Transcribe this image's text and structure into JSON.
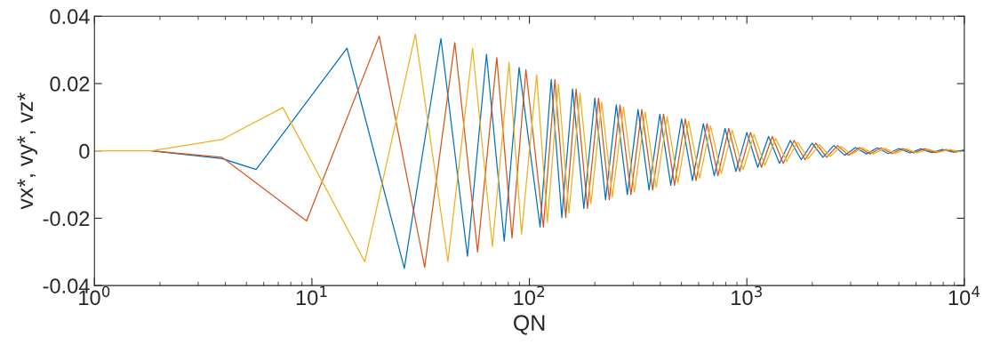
{
  "chart_data": {
    "type": "line",
    "xlabel": "QN",
    "ylabel": "vx*, vy*, vz*",
    "log": "x",
    "grid": false,
    "legend": false,
    "marker": "none",
    "line_style": "solid",
    "xlim": [
      1,
      10000
    ],
    "xticks": [
      {
        "value": 1,
        "label": "10$^{0}$"
      },
      {
        "value": 10,
        "label": "10$^{1}$"
      },
      {
        "value": 100,
        "label": "10$^{2}$"
      },
      {
        "value": 1000,
        "label": "10$^{3}$"
      },
      {
        "value": 10000,
        "label": "10$^{4}$"
      }
    ],
    "ylim": [
      -0.04,
      0.04
    ],
    "yticks": [
      {
        "value": -0.04,
        "label": "-0.04"
      },
      {
        "value": -0.02,
        "label": "-0.02"
      },
      0,
      0.02,
      0.04
    ],
    "series": [
      {
        "color": "#0072bd",
        "x": [
          1.83,
          3.86,
          5.54,
          14.5,
          26.6,
          39.2,
          51.9,
          63.5,
          76.6,
          89.7,
          112,
          126,
          141,
          158,
          178,
          200,
          224,
          251,
          282,
          316,
          355,
          398,
          447,
          501,
          562,
          631,
          708,
          794,
          891,
          1000,
          1122,
          1259,
          1413,
          1585,
          1778,
          1995,
          2239,
          2512,
          2818,
          3162,
          3548,
          3981,
          4467,
          5012,
          5623,
          6310,
          7079,
          7943,
          8913,
          10000
        ],
        "values": [
          0,
          -0.0023,
          -0.0055,
          0.0305,
          -0.0349,
          0.0334,
          -0.0313,
          0.0287,
          -0.0268,
          0.0248,
          -0.0226,
          0.0212,
          -0.0198,
          0.0184,
          -0.0171,
          0.0157,
          -0.0145,
          0.0137,
          -0.013,
          0.0123,
          -0.0116,
          0.0109,
          -0.0102,
          0.0095,
          -0.0088,
          0.0081,
          -0.0074,
          0.0067,
          -0.0061,
          0.0055,
          -0.0049,
          0.0043,
          -0.0037,
          0.0031,
          -0.0026,
          0.0023,
          -0.0019,
          0.0016,
          -0.0013,
          0.001,
          -0.0009,
          0.0009,
          -0.0008,
          0.0007,
          -0.0006,
          0.0006,
          -0.0005,
          0.0004,
          -0.0004,
          0.0003
        ]
      },
      {
        "color": "#d95319",
        "x": [
          1.83,
          3.86,
          9.45,
          20.4,
          33.0,
          45.4,
          57.8,
          70.8,
          83.2,
          96.4,
          116,
          131,
          147,
          164,
          185,
          208,
          233,
          261,
          293,
          329,
          369,
          414,
          465,
          521,
          584,
          656,
          736,
          826,
          927,
          1040,
          1167,
          1309,
          1470,
          1648,
          1849,
          2075,
          2329,
          2612,
          2931,
          3288,
          3690,
          4140,
          4646,
          5212,
          5848,
          6562,
          7362,
          8261,
          9270
        ],
        "values": [
          0,
          -0.0019,
          -0.0208,
          0.0341,
          -0.0346,
          0.0322,
          -0.03,
          0.0277,
          -0.0258,
          0.0241,
          -0.0226,
          0.0212,
          -0.0198,
          0.0184,
          -0.0171,
          0.0157,
          -0.0145,
          0.0137,
          -0.013,
          0.0123,
          -0.0116,
          0.0109,
          -0.0102,
          0.0095,
          -0.0088,
          0.0081,
          -0.0074,
          0.0067,
          -0.0061,
          0.0055,
          -0.0049,
          0.0043,
          -0.0037,
          0.0031,
          -0.0026,
          0.0023,
          -0.0019,
          0.0016,
          -0.0013,
          0.001,
          -0.0009,
          0.0009,
          -0.0008,
          0.0007,
          -0.0006,
          0.0006,
          -0.0005,
          0.0004,
          -0.0004
        ]
      },
      {
        "color": "#edb120",
        "x": [
          1,
          1.83,
          3.86,
          7.35,
          17.5,
          29.9,
          42.2,
          54.8,
          67.6,
          80.6,
          92,
          108,
          121,
          136,
          152,
          171,
          192,
          215,
          241,
          271,
          304,
          341,
          383,
          430,
          482,
          540,
          607,
          681,
          763,
          857,
          962,
          1079,
          1211,
          1359,
          1524,
          1710,
          1918,
          2153,
          2415,
          2710,
          3040,
          3411,
          3828,
          4295,
          4819,
          5407,
          6067,
          6807,
          7637,
          8570,
          9615
        ],
        "values": [
          0,
          0,
          0.0034,
          0.0129,
          -0.0329,
          0.0347,
          -0.0329,
          0.0305,
          -0.0284,
          0.0263,
          -0.0247,
          0.0226,
          -0.0212,
          0.0198,
          -0.0184,
          0.0171,
          -0.0157,
          0.0145,
          -0.0137,
          0.013,
          -0.0123,
          0.0116,
          -0.0109,
          0.0102,
          -0.0095,
          0.0088,
          -0.0081,
          0.0074,
          -0.0067,
          0.0061,
          -0.0055,
          0.0049,
          -0.0043,
          0.0037,
          -0.0031,
          0.0026,
          -0.0023,
          0.0019,
          -0.0016,
          0.0013,
          -0.001,
          0.0009,
          -0.0009,
          0.0008,
          -0.0007,
          0.0006,
          -0.0006,
          0.0005,
          -0.0004,
          0.0004,
          -0.0003
        ]
      }
    ]
  }
}
